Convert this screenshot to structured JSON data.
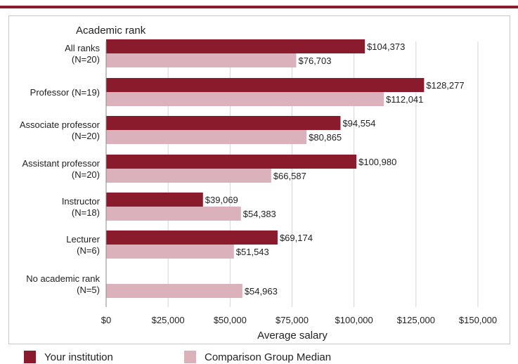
{
  "chart_data": {
    "type": "bar",
    "orientation": "horizontal",
    "title": "Academic rank",
    "xlabel": "Average salary",
    "ylabel": "",
    "xlim": [
      0,
      150000
    ],
    "xticks": [
      0,
      25000,
      50000,
      75000,
      100000,
      125000,
      150000
    ],
    "xtick_labels": [
      "$0",
      "$25,000",
      "$50,000",
      "$75,000",
      "$100,000",
      "$125,000",
      "$150,000"
    ],
    "grid": true,
    "legend_position": "bottom",
    "categories": [
      [
        "All ranks",
        "(N=20)"
      ],
      [
        "Professor (N=19)"
      ],
      [
        "Associate professor",
        "(N=20)"
      ],
      [
        "Assistant professor",
        "(N=20)"
      ],
      [
        "Instructor",
        "(N=18)"
      ],
      [
        "Lecturer",
        "(N=6)"
      ],
      [
        "No academic rank",
        "(N=5)"
      ]
    ],
    "series": [
      {
        "name": "Your institution",
        "color": "#8a1b2c",
        "values": [
          104373,
          128277,
          94554,
          100980,
          39069,
          69174,
          null
        ],
        "labels": [
          "$104,373",
          "$128,277",
          "$94,554",
          "$100,980",
          "$39,069",
          "$69,174",
          ""
        ]
      },
      {
        "name": "Comparison Group Median",
        "color": "#dbb2bb",
        "values": [
          76703,
          112041,
          80865,
          66587,
          54383,
          51543,
          54963
        ],
        "labels": [
          "$76,703",
          "$112,041",
          "$80,865",
          "$66,587",
          "$54,383",
          "$51,543",
          "$54,963"
        ]
      }
    ]
  },
  "legend": {
    "items": [
      {
        "label": "Your institution",
        "color": "#8a1b2c"
      },
      {
        "label": "Comparison Group Median",
        "color": "#dbb2bb"
      }
    ]
  }
}
